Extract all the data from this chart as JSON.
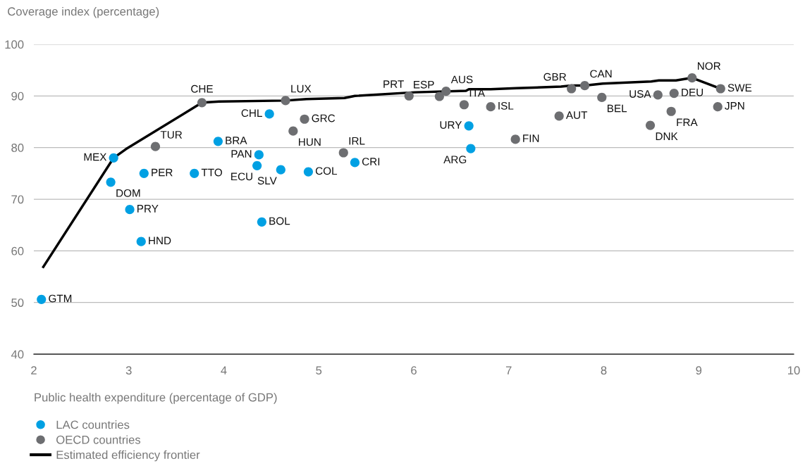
{
  "chart_data": {
    "type": "scatter",
    "xlabel": "Public health expenditure (percentage of GDP)",
    "ylabel": "Coverage index (percentage)",
    "xlim": [
      2,
      10
    ],
    "xticks": [
      2,
      3,
      4,
      5,
      6,
      7,
      8,
      9,
      10
    ],
    "ylim": [
      40,
      100
    ],
    "yticks": [
      40,
      50,
      60,
      70,
      80,
      90,
      100
    ],
    "grid": "y",
    "legend": "bottom left",
    "series": [
      {
        "name": "LAC countries",
        "marker": "circle",
        "color": "#00a0e3",
        "x": [
          2.08,
          2.84,
          2.81,
          3.16,
          3.01,
          3.13,
          3.69,
          3.94,
          4.37,
          4.35,
          4.6,
          4.48,
          4.4,
          4.89,
          5.38,
          6.58,
          6.6
        ],
        "values": [
          50.6,
          78.0,
          73.3,
          75.0,
          68.0,
          61.8,
          75.0,
          81.2,
          78.6,
          76.5,
          75.7,
          86.5,
          65.6,
          75.3,
          77.1,
          84.2,
          79.8
        ]
      },
      {
        "name": "OECD countries",
        "marker": "circle",
        "color": "#6d6e71",
        "x": [
          3.77,
          3.28,
          4.65,
          4.85,
          4.73,
          5.26,
          5.95,
          6.27,
          6.34,
          6.53,
          6.81,
          7.07,
          7.53,
          7.66,
          7.8,
          7.98,
          8.57,
          8.74,
          8.71,
          8.49,
          8.93,
          9.23,
          9.2
        ],
        "values": [
          88.7,
          80.2,
          89.1,
          85.5,
          83.2,
          79.0,
          90.0,
          89.9,
          90.9,
          88.3,
          87.9,
          81.6,
          86.1,
          91.4,
          92.0,
          89.7,
          90.2,
          90.5,
          87.0,
          84.3,
          93.5,
          91.4,
          87.9
        ]
      },
      {
        "name": "Estimated efficiency frontier",
        "type": "line",
        "color": "#000000",
        "line_style": "solid",
        "x": [
          2.1,
          2.84,
          2.97,
          3.77,
          3.95,
          4.65,
          4.87,
          5.27,
          5.38,
          6.01,
          6.55,
          6.58,
          6.81,
          7.08,
          7.55,
          7.66,
          7.8,
          7.99,
          8.5,
          8.58,
          8.76,
          8.93,
          9.23
        ],
        "values": [
          56.9,
          78.0,
          79.7,
          88.7,
          88.9,
          89.1,
          89.4,
          89.6,
          90.0,
          90.7,
          91.0,
          91.3,
          91.3,
          91.5,
          91.8,
          92.0,
          92.0,
          92.4,
          92.8,
          93.0,
          93.0,
          93.5,
          91.4
        ]
      }
    ],
    "annotations": [
      {
        "text": "GTM",
        "x": 2.08,
        "y": 50.6
      },
      {
        "text": "MEX",
        "x": 2.84,
        "y": 78.0
      },
      {
        "text": "DOM",
        "x": 2.81,
        "y": 73.3
      },
      {
        "text": "PER",
        "x": 3.16,
        "y": 75.0
      },
      {
        "text": "PRY",
        "x": 3.01,
        "y": 68.0
      },
      {
        "text": "HND",
        "x": 3.13,
        "y": 61.8
      },
      {
        "text": "TTO",
        "x": 3.69,
        "y": 75.0
      },
      {
        "text": "BRA",
        "x": 3.94,
        "y": 81.2
      },
      {
        "text": "PAN",
        "x": 4.37,
        "y": 78.6
      },
      {
        "text": "ECU",
        "x": 4.35,
        "y": 76.5
      },
      {
        "text": "SLV",
        "x": 4.6,
        "y": 75.7
      },
      {
        "text": "CHL",
        "x": 4.48,
        "y": 86.5
      },
      {
        "text": "BOL",
        "x": 4.4,
        "y": 65.6
      },
      {
        "text": "COL",
        "x": 4.89,
        "y": 75.3
      },
      {
        "text": "CRI",
        "x": 5.38,
        "y": 77.1
      },
      {
        "text": "URY",
        "x": 6.58,
        "y": 84.2
      },
      {
        "text": "ARG",
        "x": 6.6,
        "y": 79.8
      },
      {
        "text": "CHE",
        "x": 3.77,
        "y": 88.7
      },
      {
        "text": "TUR",
        "x": 3.28,
        "y": 80.2
      },
      {
        "text": "LUX",
        "x": 4.65,
        "y": 89.1
      },
      {
        "text": "GRC",
        "x": 4.85,
        "y": 85.5
      },
      {
        "text": "HUN",
        "x": 4.73,
        "y": 83.2
      },
      {
        "text": "IRL",
        "x": 5.26,
        "y": 79.0
      },
      {
        "text": "PRT",
        "x": 5.95,
        "y": 90.0
      },
      {
        "text": "ESP",
        "x": 6.27,
        "y": 89.9
      },
      {
        "text": "AUS",
        "x": 6.34,
        "y": 90.9
      },
      {
        "text": "ITA",
        "x": 6.53,
        "y": 88.3
      },
      {
        "text": "ISL",
        "x": 6.81,
        "y": 87.9
      },
      {
        "text": "FIN",
        "x": 7.07,
        "y": 81.6
      },
      {
        "text": "AUT",
        "x": 7.53,
        "y": 86.1
      },
      {
        "text": "GBR",
        "x": 7.66,
        "y": 91.4
      },
      {
        "text": "CAN",
        "x": 7.8,
        "y": 92.0
      },
      {
        "text": "BEL",
        "x": 7.98,
        "y": 89.7
      },
      {
        "text": "USA",
        "x": 8.57,
        "y": 90.2
      },
      {
        "text": "DEU",
        "x": 8.74,
        "y": 90.5
      },
      {
        "text": "FRA",
        "x": 8.71,
        "y": 87.0
      },
      {
        "text": "DNK",
        "x": 8.49,
        "y": 84.3
      },
      {
        "text": "NOR",
        "x": 8.93,
        "y": 93.5
      },
      {
        "text": "SWE",
        "x": 9.23,
        "y": 91.4
      },
      {
        "text": "JPN",
        "x": 9.2,
        "y": 87.9
      }
    ]
  }
}
